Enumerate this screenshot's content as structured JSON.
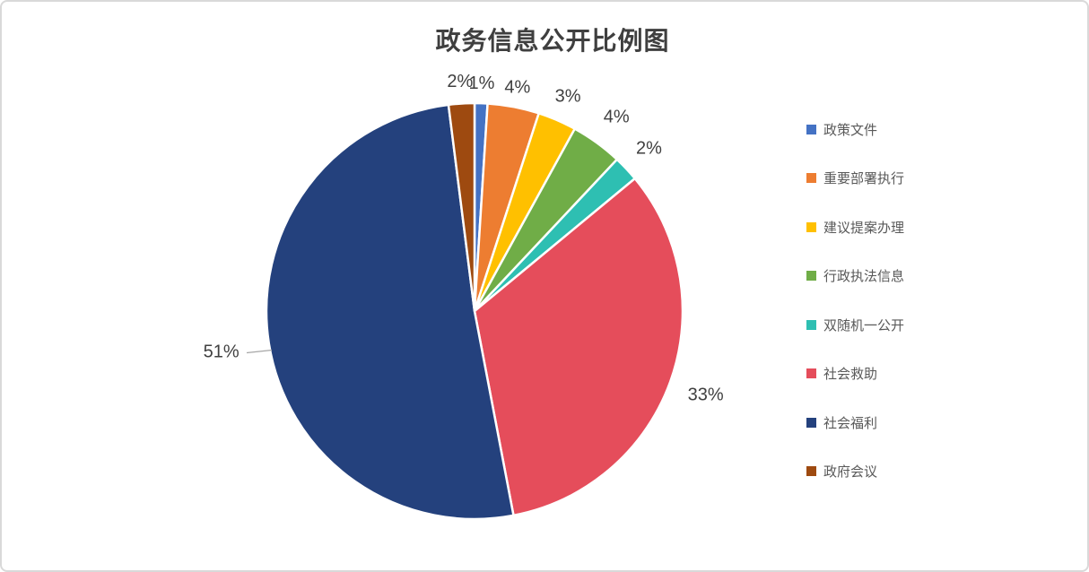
{
  "window": {
    "background": "#FFFFFF",
    "border_color": "#D9D9D9"
  },
  "chart_data": {
    "type": "pie",
    "title": "政务信息公开比例图",
    "legend_position": "right",
    "rotation": "first slice starts at 12 o'clock, clockwise",
    "categories": [
      "政策文件",
      "重要部署执行",
      "建议提案办理",
      "行政执法信息",
      "双随机一公开",
      "社会救助",
      "社会福利",
      "政府会议"
    ],
    "values": [
      1,
      4,
      3,
      4,
      2,
      33,
      51,
      2
    ],
    "data_labels": [
      "1%",
      "4%",
      "3%",
      "4%",
      "2%",
      "33%",
      "51%",
      "2%"
    ],
    "colors": [
      "#4472C4",
      "#ED7D31",
      "#FFC000",
      "#70AD47",
      "#2EBFB2",
      "#E54D5B",
      "#24417D",
      "#9E4A10"
    ],
    "title_color": "#3F3F3F",
    "data_label_color": "#404040",
    "legend_text_color": "#595959",
    "leader_line_color": "#A6A6A6",
    "slice_separator_color": "#FFFFFF"
  }
}
